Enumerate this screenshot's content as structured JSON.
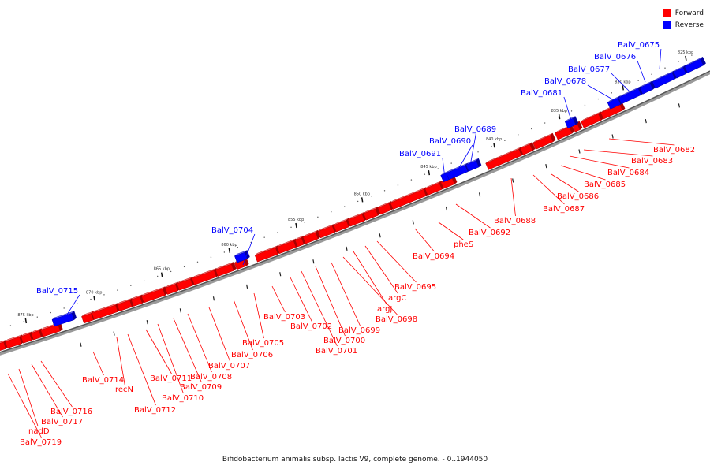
{
  "legend": {
    "forward_label": "Forward",
    "reverse_label": "Reverse",
    "forward_color": "#ff0000",
    "reverse_color": "#0000ff"
  },
  "caption": "Bifidobacterium animalis subsp. lactis V9, complete genome. - 0..1944050",
  "scale": [
    "825 kbp",
    "830 kbp",
    "835 kbp",
    "840 kbp",
    "845 kbp",
    "850 kbp",
    "855 kbp",
    "860 kbp",
    "865 kbp",
    "870 kbp",
    "875 kbp"
  ],
  "genes": [
    {
      "id": "BalV_0675",
      "strand": "reverse"
    },
    {
      "id": "BalV_0676",
      "strand": "reverse"
    },
    {
      "id": "BalV_0677",
      "strand": "reverse"
    },
    {
      "id": "BalV_0678",
      "strand": "reverse"
    },
    {
      "id": "BalV_0681",
      "strand": "reverse"
    },
    {
      "id": "BalV_0682",
      "strand": "forward"
    },
    {
      "id": "BalV_0683",
      "strand": "forward"
    },
    {
      "id": "BalV_0684",
      "strand": "forward"
    },
    {
      "id": "BalV_0685",
      "strand": "forward"
    },
    {
      "id": "BalV_0686",
      "strand": "forward"
    },
    {
      "id": "BalV_0687",
      "strand": "forward"
    },
    {
      "id": "BalV_0688",
      "strand": "forward"
    },
    {
      "id": "BalV_0689",
      "strand": "reverse"
    },
    {
      "id": "BalV_0690",
      "strand": "reverse"
    },
    {
      "id": "BalV_0691",
      "strand": "reverse"
    },
    {
      "id": "BalV_0692",
      "strand": "forward"
    },
    {
      "id": "pheS",
      "strand": "forward"
    },
    {
      "id": "BalV_0694",
      "strand": "forward"
    },
    {
      "id": "BalV_0695",
      "strand": "forward"
    },
    {
      "id": "argC",
      "strand": "forward"
    },
    {
      "id": "argJ",
      "strand": "forward"
    },
    {
      "id": "BalV_0698",
      "strand": "forward"
    },
    {
      "id": "BalV_0699",
      "strand": "forward"
    },
    {
      "id": "BalV_0700",
      "strand": "forward"
    },
    {
      "id": "BalV_0701",
      "strand": "forward"
    },
    {
      "id": "BalV_0702",
      "strand": "forward"
    },
    {
      "id": "BalV_0703",
      "strand": "forward"
    },
    {
      "id": "BalV_0704",
      "strand": "reverse"
    },
    {
      "id": "BalV_0705",
      "strand": "forward"
    },
    {
      "id": "BalV_0706",
      "strand": "forward"
    },
    {
      "id": "BalV_0707",
      "strand": "forward"
    },
    {
      "id": "BalV_0708",
      "strand": "forward"
    },
    {
      "id": "BalV_0709",
      "strand": "forward"
    },
    {
      "id": "BalV_0710",
      "strand": "forward"
    },
    {
      "id": "BalV_0711",
      "strand": "forward"
    },
    {
      "id": "BalV_0712",
      "strand": "forward"
    },
    {
      "id": "recN",
      "strand": "forward"
    },
    {
      "id": "BalV_0714",
      "strand": "forward"
    },
    {
      "id": "BalV_0715",
      "strand": "reverse"
    },
    {
      "id": "BalV_0716",
      "strand": "forward"
    },
    {
      "id": "BalV_0717",
      "strand": "forward"
    },
    {
      "id": "nadD",
      "strand": "forward"
    },
    {
      "id": "BalV_0719",
      "strand": "forward"
    }
  ]
}
